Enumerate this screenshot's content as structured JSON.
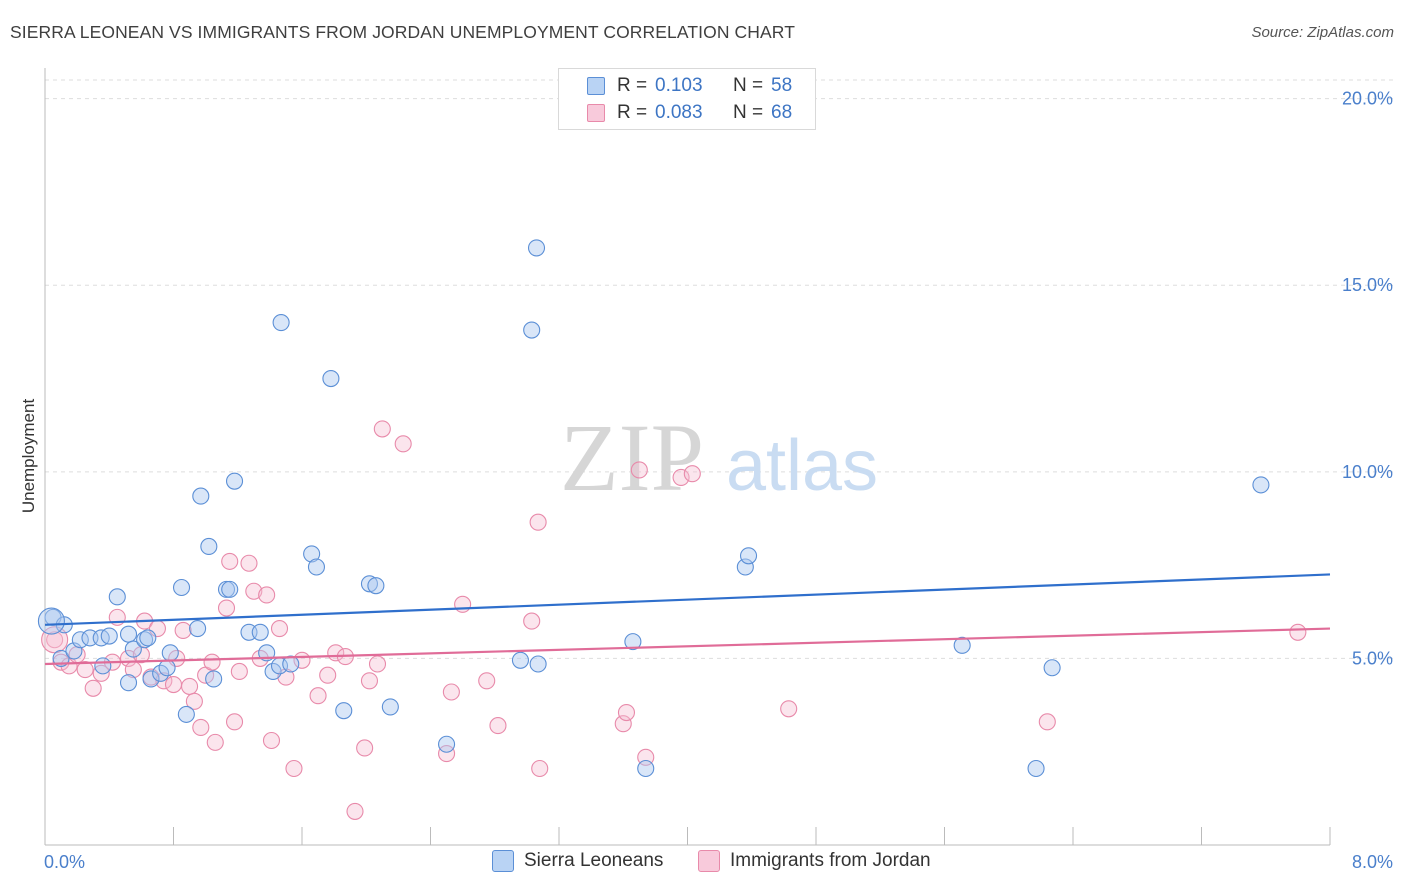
{
  "title": "SIERRA LEONEAN VS IMMIGRANTS FROM JORDAN UNEMPLOYMENT CORRELATION CHART",
  "source": "Source: ZipAtlas.com",
  "watermark": {
    "zip": "ZIP",
    "atlas": "atlas"
  },
  "colors": {
    "blue": "#5b8fd6",
    "blue_fill": "#aac8f0",
    "blue_line": "#2f6fcc",
    "pink": "#e88aaa",
    "pink_fill": "#f6bfd2",
    "pink_line": "#e06c98",
    "tick_text": "#4a7fcb",
    "grid": "#dddddd"
  },
  "legend_top": {
    "rows": [
      {
        "r_label": "R =",
        "r_value": "0.103",
        "n_label": "N =",
        "n_value": "58"
      },
      {
        "r_label": "R =",
        "r_value": "0.083",
        "n_label": "N =",
        "n_value": "68"
      }
    ]
  },
  "chart_data": {
    "type": "scatter",
    "title": "SIERRA LEONEAN VS IMMIGRANTS FROM JORDAN UNEMPLOYMENT CORRELATION CHART",
    "xlabel": "",
    "ylabel": "Unemployment",
    "xlim": [
      0,
      8
    ],
    "ylim": [
      0,
      20.5
    ],
    "x_ticks": [
      {
        "value": 0,
        "label": "0.0%"
      },
      {
        "value": 8,
        "label": "8.0%"
      }
    ],
    "y_ticks": [
      {
        "value": 5,
        "label": "5.0%"
      },
      {
        "value": 10,
        "label": "10.0%"
      },
      {
        "value": 15,
        "label": "15.0%"
      },
      {
        "value": 20,
        "label": "20.0%"
      }
    ],
    "grid": "horizontal dashed",
    "legend_position": "top-center",
    "series": [
      {
        "name": "Sierra Leoneans",
        "color": "#5b8fd6",
        "trend": {
          "x": [
            0,
            8
          ],
          "y": [
            5.9,
            7.25
          ]
        },
        "points": [
          [
            0.05,
            6.1
          ],
          [
            0.12,
            5.9
          ],
          [
            0.1,
            5.0
          ],
          [
            0.18,
            5.2
          ],
          [
            0.22,
            5.5
          ],
          [
            0.28,
            5.55
          ],
          [
            0.35,
            5.55
          ],
          [
            0.4,
            5.6
          ],
          [
            0.45,
            6.65
          ],
          [
            0.52,
            5.65
          ],
          [
            0.55,
            5.25
          ],
          [
            0.62,
            5.5
          ],
          [
            0.64,
            5.55
          ],
          [
            0.52,
            4.35
          ],
          [
            0.36,
            4.8
          ],
          [
            0.66,
            4.45
          ],
          [
            0.72,
            4.6
          ],
          [
            0.76,
            4.75
          ],
          [
            0.78,
            5.15
          ],
          [
            0.85,
            6.9
          ],
          [
            0.88,
            3.5
          ],
          [
            0.95,
            5.8
          ],
          [
            0.97,
            9.35
          ],
          [
            1.02,
            8.0
          ],
          [
            1.05,
            4.45
          ],
          [
            1.13,
            6.85
          ],
          [
            1.15,
            6.85
          ],
          [
            1.18,
            9.75
          ],
          [
            1.27,
            5.7
          ],
          [
            1.34,
            5.7
          ],
          [
            1.38,
            5.15
          ],
          [
            1.42,
            4.65
          ],
          [
            1.46,
            4.8
          ],
          [
            1.47,
            14.0
          ],
          [
            1.53,
            4.85
          ],
          [
            1.66,
            7.8
          ],
          [
            1.69,
            7.45
          ],
          [
            1.78,
            12.5
          ],
          [
            1.86,
            3.6
          ],
          [
            2.02,
            7.0
          ],
          [
            2.06,
            6.95
          ],
          [
            2.15,
            3.7
          ],
          [
            2.5,
            2.7
          ],
          [
            2.96,
            4.95
          ],
          [
            3.03,
            13.8
          ],
          [
            3.06,
            16.0
          ],
          [
            3.07,
            4.85
          ],
          [
            3.66,
            5.45
          ],
          [
            3.74,
            2.05
          ],
          [
            4.36,
            7.45
          ],
          [
            4.38,
            7.75
          ],
          [
            5.71,
            5.35
          ],
          [
            6.17,
            2.05
          ],
          [
            6.27,
            4.75
          ],
          [
            7.57,
            9.65
          ]
        ]
      },
      {
        "name": "Immigrants from Jordan",
        "color": "#e88aaa",
        "trend": {
          "x": [
            0,
            8
          ],
          "y": [
            4.85,
            5.8
          ]
        },
        "points": [
          [
            0.06,
            5.5
          ],
          [
            0.1,
            4.9
          ],
          [
            0.15,
            4.8
          ],
          [
            0.2,
            5.1
          ],
          [
            0.25,
            4.7
          ],
          [
            0.3,
            4.2
          ],
          [
            0.35,
            4.6
          ],
          [
            0.42,
            4.9
          ],
          [
            0.45,
            6.1
          ],
          [
            0.52,
            5.0
          ],
          [
            0.55,
            4.7
          ],
          [
            0.6,
            5.1
          ],
          [
            0.62,
            6.0
          ],
          [
            0.66,
            4.5
          ],
          [
            0.7,
            5.8
          ],
          [
            0.74,
            4.4
          ],
          [
            0.8,
            4.3
          ],
          [
            0.82,
            5.0
          ],
          [
            0.86,
            5.75
          ],
          [
            0.9,
            4.25
          ],
          [
            0.93,
            3.85
          ],
          [
            0.97,
            3.15
          ],
          [
            1.0,
            4.55
          ],
          [
            1.04,
            4.9
          ],
          [
            1.06,
            2.75
          ],
          [
            1.13,
            6.35
          ],
          [
            1.15,
            7.6
          ],
          [
            1.18,
            3.3
          ],
          [
            1.21,
            4.65
          ],
          [
            1.27,
            7.55
          ],
          [
            1.3,
            6.8
          ],
          [
            1.34,
            5.0
          ],
          [
            1.38,
            6.7
          ],
          [
            1.41,
            2.8
          ],
          [
            1.46,
            5.8
          ],
          [
            1.5,
            4.5
          ],
          [
            1.55,
            2.05
          ],
          [
            1.6,
            4.95
          ],
          [
            1.7,
            4.0
          ],
          [
            1.76,
            4.55
          ],
          [
            1.81,
            5.15
          ],
          [
            1.87,
            5.05
          ],
          [
            1.93,
            0.9
          ],
          [
            1.99,
            2.6
          ],
          [
            2.02,
            4.4
          ],
          [
            2.07,
            4.85
          ],
          [
            2.1,
            11.15
          ],
          [
            2.23,
            10.75
          ],
          [
            2.5,
            2.45
          ],
          [
            2.53,
            4.1
          ],
          [
            2.6,
            6.45
          ],
          [
            2.75,
            4.4
          ],
          [
            2.82,
            3.2
          ],
          [
            3.03,
            6.0
          ],
          [
            3.07,
            8.65
          ],
          [
            3.08,
            2.05
          ],
          [
            3.6,
            3.25
          ],
          [
            3.62,
            3.55
          ],
          [
            3.7,
            10.05
          ],
          [
            3.74,
            2.35
          ],
          [
            3.96,
            9.85
          ],
          [
            4.03,
            9.95
          ],
          [
            4.63,
            3.65
          ],
          [
            6.24,
            3.3
          ],
          [
            7.8,
            5.7
          ]
        ]
      }
    ]
  }
}
